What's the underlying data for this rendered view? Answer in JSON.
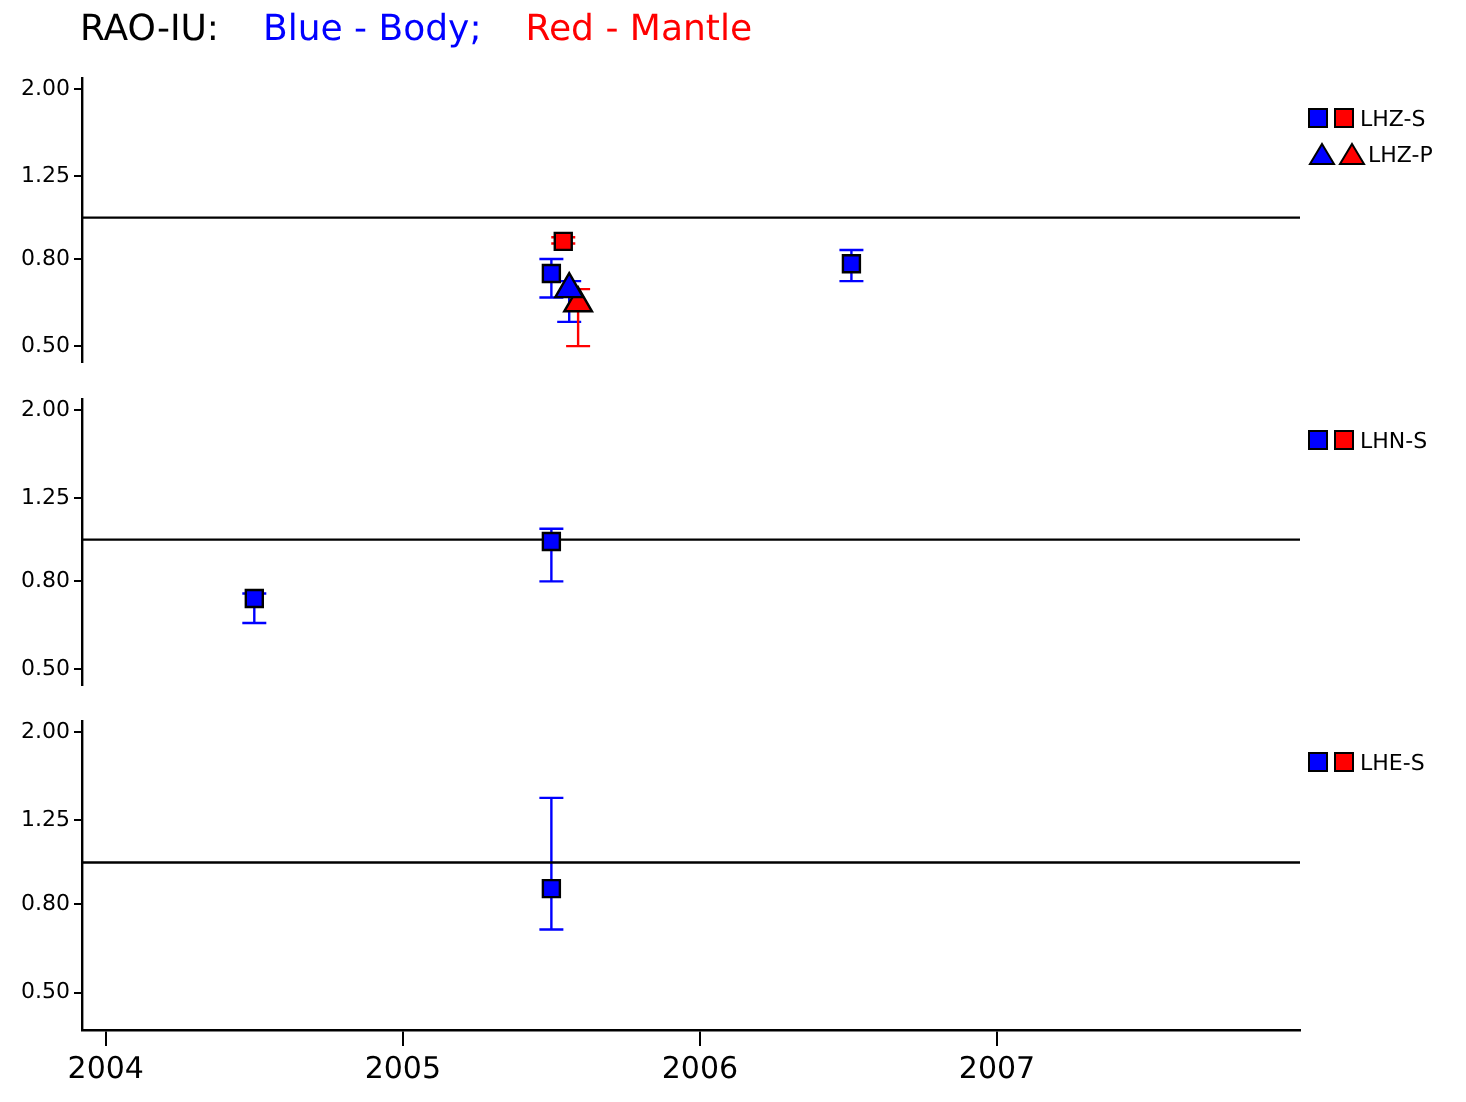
{
  "chart_data": [
    {
      "type": "scatter",
      "title": "RAO-IU:",
      "annotations": [
        "Blue - Body;",
        "Red - Mantle"
      ],
      "log": "y",
      "grid": false,
      "legend": "right",
      "tick_labels": "y",
      "xlim": [
        2003.92,
        2008.02
      ],
      "ylim": [
        0.46,
        2.12
      ],
      "yticks": [
        {
          "value": 0.5,
          "label": "0.50"
        },
        {
          "value": 0.8,
          "label": "0.80"
        },
        {
          "value": 1.25,
          "label": "1.25"
        },
        {
          "value": 2,
          "label": "2.00"
        }
      ],
      "ref_lines": [
        {
          "axis": "y",
          "value": 1
        }
      ],
      "series": [
        {
          "color": "#0000ff",
          "marker": "square",
          "x": [
            2005.5,
            2006.51
          ],
          "values": [
            0.74,
            0.78
          ],
          "errors": [
            [
              0.65,
              0.8
            ],
            [
              0.71,
              0.84
            ]
          ]
        },
        {
          "name": "LHZ-S",
          "color": "#ff0000",
          "marker": "square",
          "x": [
            2005.54
          ],
          "values": [
            0.88
          ],
          "errors": [
            [
              0.87,
              0.9
            ]
          ]
        },
        {
          "color": "#0000ff",
          "marker": "triangle",
          "x": [
            2005.56
          ],
          "values": [
            0.68
          ],
          "errors": [
            [
              0.57,
              0.71
            ]
          ]
        },
        {
          "name": "LHZ-P",
          "color": "#ff0000",
          "marker": "triangle",
          "x": [
            2005.59
          ],
          "values": [
            0.63
          ],
          "errors": [
            [
              0.5,
              0.68
            ]
          ]
        }
      ]
    },
    {
      "type": "scatter",
      "log": "y",
      "grid": false,
      "legend": "right",
      "tick_labels": "y",
      "xlim": [
        2003.92,
        2008.02
      ],
      "ylim": [
        0.46,
        2.12
      ],
      "yticks": [
        {
          "value": 0.5,
          "label": "0.50"
        },
        {
          "value": 0.8,
          "label": "0.80"
        },
        {
          "value": 1.25,
          "label": "1.25"
        },
        {
          "value": 2,
          "label": "2.00"
        }
      ],
      "ref_lines": [
        {
          "axis": "y",
          "value": 1
        }
      ],
      "series": [
        {
          "color": "#0000ff",
          "marker": "square",
          "x": [
            2004.5,
            2005.5
          ],
          "values": [
            0.73,
            0.99
          ],
          "errors": [
            [
              0.64,
              0.75
            ],
            [
              0.8,
              1.06
            ]
          ]
        },
        {
          "name": "LHN-S",
          "color": "#ff0000",
          "marker": "square"
        }
      ]
    },
    {
      "type": "scatter",
      "log": "y",
      "grid": false,
      "legend": "right",
      "xlim": [
        2003.92,
        2008.02
      ],
      "ylim": [
        0.41,
        2.12
      ],
      "xticks": [
        2004,
        2005,
        2006,
        2007
      ],
      "yticks": [
        {
          "value": 0.5,
          "label": "0.50"
        },
        {
          "value": 0.8,
          "label": "0.80"
        },
        {
          "value": 1.25,
          "label": "1.25"
        },
        {
          "value": 2,
          "label": "2.00"
        }
      ],
      "ref_lines": [
        {
          "axis": "y",
          "value": 1
        }
      ],
      "series": [
        {
          "color": "#0000ff",
          "marker": "square",
          "x": [
            2005.5
          ],
          "values": [
            0.87
          ],
          "errors": [
            [
              0.7,
              1.41
            ]
          ]
        },
        {
          "name": "LHE-S",
          "color": "#ff0000",
          "marker": "square"
        }
      ]
    }
  ]
}
